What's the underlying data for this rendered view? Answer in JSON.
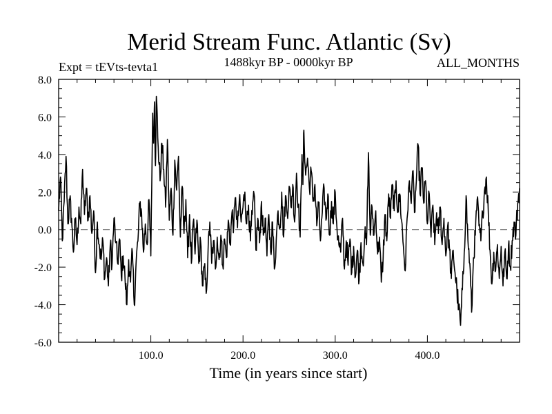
{
  "chart_data": {
    "type": "line",
    "title": "Merid Stream Func. Atlantic (Sv)",
    "subtitle": "1488kyr BP - 0000kyr BP",
    "left_label": "Expt = tEVts-tevta1",
    "right_label": "ALL_MONTHS",
    "xlabel": "Time (in years since start)",
    "ylabel": "",
    "xlim": [
      0,
      500
    ],
    "ylim": [
      -6,
      8
    ],
    "x_ticks": [
      {
        "value": 100,
        "label": "100.0"
      },
      {
        "value": 200,
        "label": "200.0"
      },
      {
        "value": 300,
        "label": "300.0"
      },
      {
        "value": 400,
        "label": "400.0"
      }
    ],
    "y_ticks": [
      {
        "value": -6,
        "label": "-6.0"
      },
      {
        "value": -4,
        "label": "-4.0"
      },
      {
        "value": -2,
        "label": "-2.0"
      },
      {
        "value": 0,
        "label": "0.0"
      },
      {
        "value": 2,
        "label": "2.0"
      },
      {
        "value": 4,
        "label": "4.0"
      },
      {
        "value": 6,
        "label": "6.0"
      },
      {
        "value": 8,
        "label": "8.0"
      }
    ],
    "zero_line": true,
    "series": [
      {
        "name": "Merid Stream Func. Atlantic",
        "anchors": [
          [
            0,
            1.0
          ],
          [
            2,
            2.8
          ],
          [
            4,
            -0.6
          ],
          [
            6,
            1.5
          ],
          [
            8,
            3.9
          ],
          [
            10,
            0.3
          ],
          [
            12,
            1.6
          ],
          [
            14,
            0.6
          ],
          [
            16,
            -1.2
          ],
          [
            18,
            0.5
          ],
          [
            20,
            -0.8
          ],
          [
            22,
            1.2
          ],
          [
            24,
            0.3
          ],
          [
            26,
            3.2
          ],
          [
            28,
            0.8
          ],
          [
            30,
            2.2
          ],
          [
            32,
            0.5
          ],
          [
            34,
            1.8
          ],
          [
            36,
            -0.2
          ],
          [
            38,
            1.0
          ],
          [
            40,
            -2.3
          ],
          [
            42,
            0.4
          ],
          [
            44,
            -0.8
          ],
          [
            46,
            -1.6
          ],
          [
            48,
            -0.6
          ],
          [
            50,
            -2.6
          ],
          [
            52,
            -1.5
          ],
          [
            54,
            -3.0
          ],
          [
            56,
            -0.8
          ],
          [
            58,
            -1.8
          ],
          [
            60,
            0.6
          ],
          [
            62,
            -0.7
          ],
          [
            64,
            -1.8
          ],
          [
            66,
            -0.5
          ],
          [
            68,
            -2.5
          ],
          [
            70,
            -1.4
          ],
          [
            72,
            -2.6
          ],
          [
            74,
            -4.0
          ],
          [
            76,
            -1.6
          ],
          [
            78,
            -2.8
          ],
          [
            80,
            -1.2
          ],
          [
            82,
            -4.0
          ],
          [
            84,
            -1.8
          ],
          [
            86,
            -0.6
          ],
          [
            88,
            1.4
          ],
          [
            90,
            0.9
          ],
          [
            92,
            -1.2
          ],
          [
            94,
            0.3
          ],
          [
            96,
            -0.8
          ],
          [
            98,
            1.6
          ],
          [
            100,
            -1.4
          ],
          [
            102,
            6.2
          ],
          [
            103,
            4.6
          ],
          [
            104,
            6.8
          ],
          [
            105,
            3.4
          ],
          [
            106,
            7.1
          ],
          [
            108,
            4.4
          ],
          [
            110,
            2.6
          ],
          [
            112,
            4.6
          ],
          [
            114,
            3.2
          ],
          [
            116,
            1.2
          ],
          [
            118,
            4.8
          ],
          [
            120,
            0.5
          ],
          [
            122,
            2.2
          ],
          [
            124,
            -0.3
          ],
          [
            126,
            3.7
          ],
          [
            128,
            2.1
          ],
          [
            130,
            3.9
          ],
          [
            132,
            -0.4
          ],
          [
            134,
            2.3
          ],
          [
            136,
            -0.2
          ],
          [
            138,
            1.6
          ],
          [
            140,
            -1.5
          ],
          [
            142,
            0.8
          ],
          [
            144,
            -1.8
          ],
          [
            146,
            0.4
          ],
          [
            148,
            -1.3
          ],
          [
            150,
            0.5
          ],
          [
            152,
            -1.8
          ],
          [
            154,
            -0.6
          ],
          [
            156,
            -3.0
          ],
          [
            158,
            -2.0
          ],
          [
            160,
            -3.4
          ],
          [
            162,
            -1.3
          ],
          [
            164,
            0.4
          ],
          [
            166,
            -1.8
          ],
          [
            168,
            -0.6
          ],
          [
            170,
            -2.1
          ],
          [
            172,
            -0.4
          ],
          [
            174,
            -1.6
          ],
          [
            176,
            -0.3
          ],
          [
            178,
            -1.9
          ],
          [
            180,
            -0.5
          ],
          [
            182,
            -1.5
          ],
          [
            184,
            0.5
          ],
          [
            186,
            -0.8
          ],
          [
            188,
            0.9
          ],
          [
            190,
            0.2
          ],
          [
            192,
            1.7
          ],
          [
            194,
            0.1
          ],
          [
            196,
            1.6
          ],
          [
            198,
            0.4
          ],
          [
            200,
            1.2
          ],
          [
            202,
            2.0
          ],
          [
            204,
            0.3
          ],
          [
            206,
            1.3
          ],
          [
            208,
            -0.6
          ],
          [
            210,
            0.8
          ],
          [
            212,
            1.9
          ],
          [
            214,
            -1.1
          ],
          [
            216,
            0.6
          ],
          [
            218,
            -0.7
          ],
          [
            220,
            1.5
          ],
          [
            222,
            -0.3
          ],
          [
            224,
            0.6
          ],
          [
            226,
            -1.4
          ],
          [
            228,
            0.8
          ],
          [
            230,
            -1.2
          ],
          [
            232,
            0.4
          ],
          [
            234,
            -2.1
          ],
          [
            236,
            -0.6
          ],
          [
            238,
            1.0
          ],
          [
            240,
            0.1
          ],
          [
            242,
            2.0
          ],
          [
            244,
            -0.4
          ],
          [
            246,
            1.8
          ],
          [
            248,
            0.8
          ],
          [
            250,
            2.3
          ],
          [
            252,
            1.2
          ],
          [
            254,
            2.4
          ],
          [
            256,
            0.4
          ],
          [
            258,
            3.0
          ],
          [
            260,
            1.3
          ],
          [
            262,
            -0.4
          ],
          [
            264,
            4.0
          ],
          [
            265,
            2.4
          ],
          [
            266,
            5.3
          ],
          [
            268,
            2.9
          ],
          [
            270,
            3.8
          ],
          [
            272,
            2.2
          ],
          [
            274,
            3.1
          ],
          [
            276,
            1.5
          ],
          [
            278,
            2.4
          ],
          [
            280,
            0.2
          ],
          [
            282,
            1.4
          ],
          [
            284,
            -0.6
          ],
          [
            286,
            0.9
          ],
          [
            288,
            2.2
          ],
          [
            290,
            0.5
          ],
          [
            292,
            1.9
          ],
          [
            294,
            -0.3
          ],
          [
            296,
            1.5
          ],
          [
            298,
            0.3
          ],
          [
            300,
            2.0
          ],
          [
            302,
            0.0
          ],
          [
            304,
            -0.8
          ],
          [
            306,
            -1.2
          ],
          [
            308,
            0.6
          ],
          [
            310,
            -2.1
          ],
          [
            312,
            -0.6
          ],
          [
            314,
            -1.9
          ],
          [
            316,
            -0.5
          ],
          [
            318,
            -2.3
          ],
          [
            320,
            -0.9
          ],
          [
            322,
            -2.5
          ],
          [
            324,
            -1.1
          ],
          [
            326,
            -2.7
          ],
          [
            328,
            -0.7
          ],
          [
            330,
            -1.8
          ],
          [
            332,
            -0.3
          ],
          [
            334,
            -0.8
          ],
          [
            336,
            4.1
          ],
          [
            338,
            -0.3
          ],
          [
            340,
            1.2
          ],
          [
            342,
            -0.3
          ],
          [
            344,
            1.0
          ],
          [
            346,
            -1.3
          ],
          [
            348,
            -0.4
          ],
          [
            350,
            -2.8
          ],
          [
            352,
            -1.5
          ],
          [
            354,
            0.8
          ],
          [
            356,
            -0.6
          ],
          [
            358,
            1.9
          ],
          [
            360,
            0.6
          ],
          [
            362,
            2.4
          ],
          [
            364,
            1.0
          ],
          [
            366,
            2.6
          ],
          [
            368,
            0.9
          ],
          [
            370,
            1.9
          ],
          [
            372,
            0.5
          ],
          [
            374,
            -0.9
          ],
          [
            376,
            -2.2
          ],
          [
            378,
            0.6
          ],
          [
            380,
            2.4
          ],
          [
            382,
            1.6
          ],
          [
            384,
            3.1
          ],
          [
            386,
            0.9
          ],
          [
            388,
            2.6
          ],
          [
            390,
            4.5
          ],
          [
            392,
            1.9
          ],
          [
            394,
            3.3
          ],
          [
            396,
            1.4
          ],
          [
            398,
            2.6
          ],
          [
            400,
            0.3
          ],
          [
            402,
            1.9
          ],
          [
            404,
            -0.4
          ],
          [
            406,
            1.3
          ],
          [
            408,
            -0.8
          ],
          [
            410,
            0.9
          ],
          [
            412,
            -0.2
          ],
          [
            414,
            1.2
          ],
          [
            416,
            -0.8
          ],
          [
            418,
            0.6
          ],
          [
            420,
            -1.4
          ],
          [
            422,
            0.2
          ],
          [
            424,
            -1.1
          ],
          [
            426,
            -2.6
          ],
          [
            428,
            -1.1
          ],
          [
            430,
            -2.3
          ],
          [
            432,
            -3.2
          ],
          [
            434,
            -4.2
          ],
          [
            436,
            -5.1
          ],
          [
            438,
            -3.2
          ],
          [
            440,
            -1.2
          ],
          [
            442,
            1.8
          ],
          [
            444,
            -0.6
          ],
          [
            446,
            -1.8
          ],
          [
            448,
            -4.4
          ],
          [
            450,
            -1.5
          ],
          [
            452,
            -0.3
          ],
          [
            454,
            1.6
          ],
          [
            456,
            0.2
          ],
          [
            458,
            -0.6
          ],
          [
            460,
            0.9
          ],
          [
            462,
            2.1
          ],
          [
            464,
            2.8
          ],
          [
            466,
            1.0
          ],
          [
            468,
            -1.1
          ],
          [
            470,
            -2.9
          ],
          [
            472,
            -1.2
          ],
          [
            474,
            -2.2
          ],
          [
            476,
            -0.8
          ],
          [
            478,
            -2.6
          ],
          [
            480,
            -0.9
          ],
          [
            482,
            -3.0
          ],
          [
            484,
            -1.2
          ],
          [
            486,
            -2.6
          ],
          [
            488,
            -0.8
          ],
          [
            490,
            -2.0
          ],
          [
            492,
            -0.6
          ],
          [
            494,
            0.4
          ],
          [
            496,
            -0.3
          ],
          [
            498,
            1.4
          ],
          [
            500,
            2.2
          ]
        ]
      }
    ]
  }
}
